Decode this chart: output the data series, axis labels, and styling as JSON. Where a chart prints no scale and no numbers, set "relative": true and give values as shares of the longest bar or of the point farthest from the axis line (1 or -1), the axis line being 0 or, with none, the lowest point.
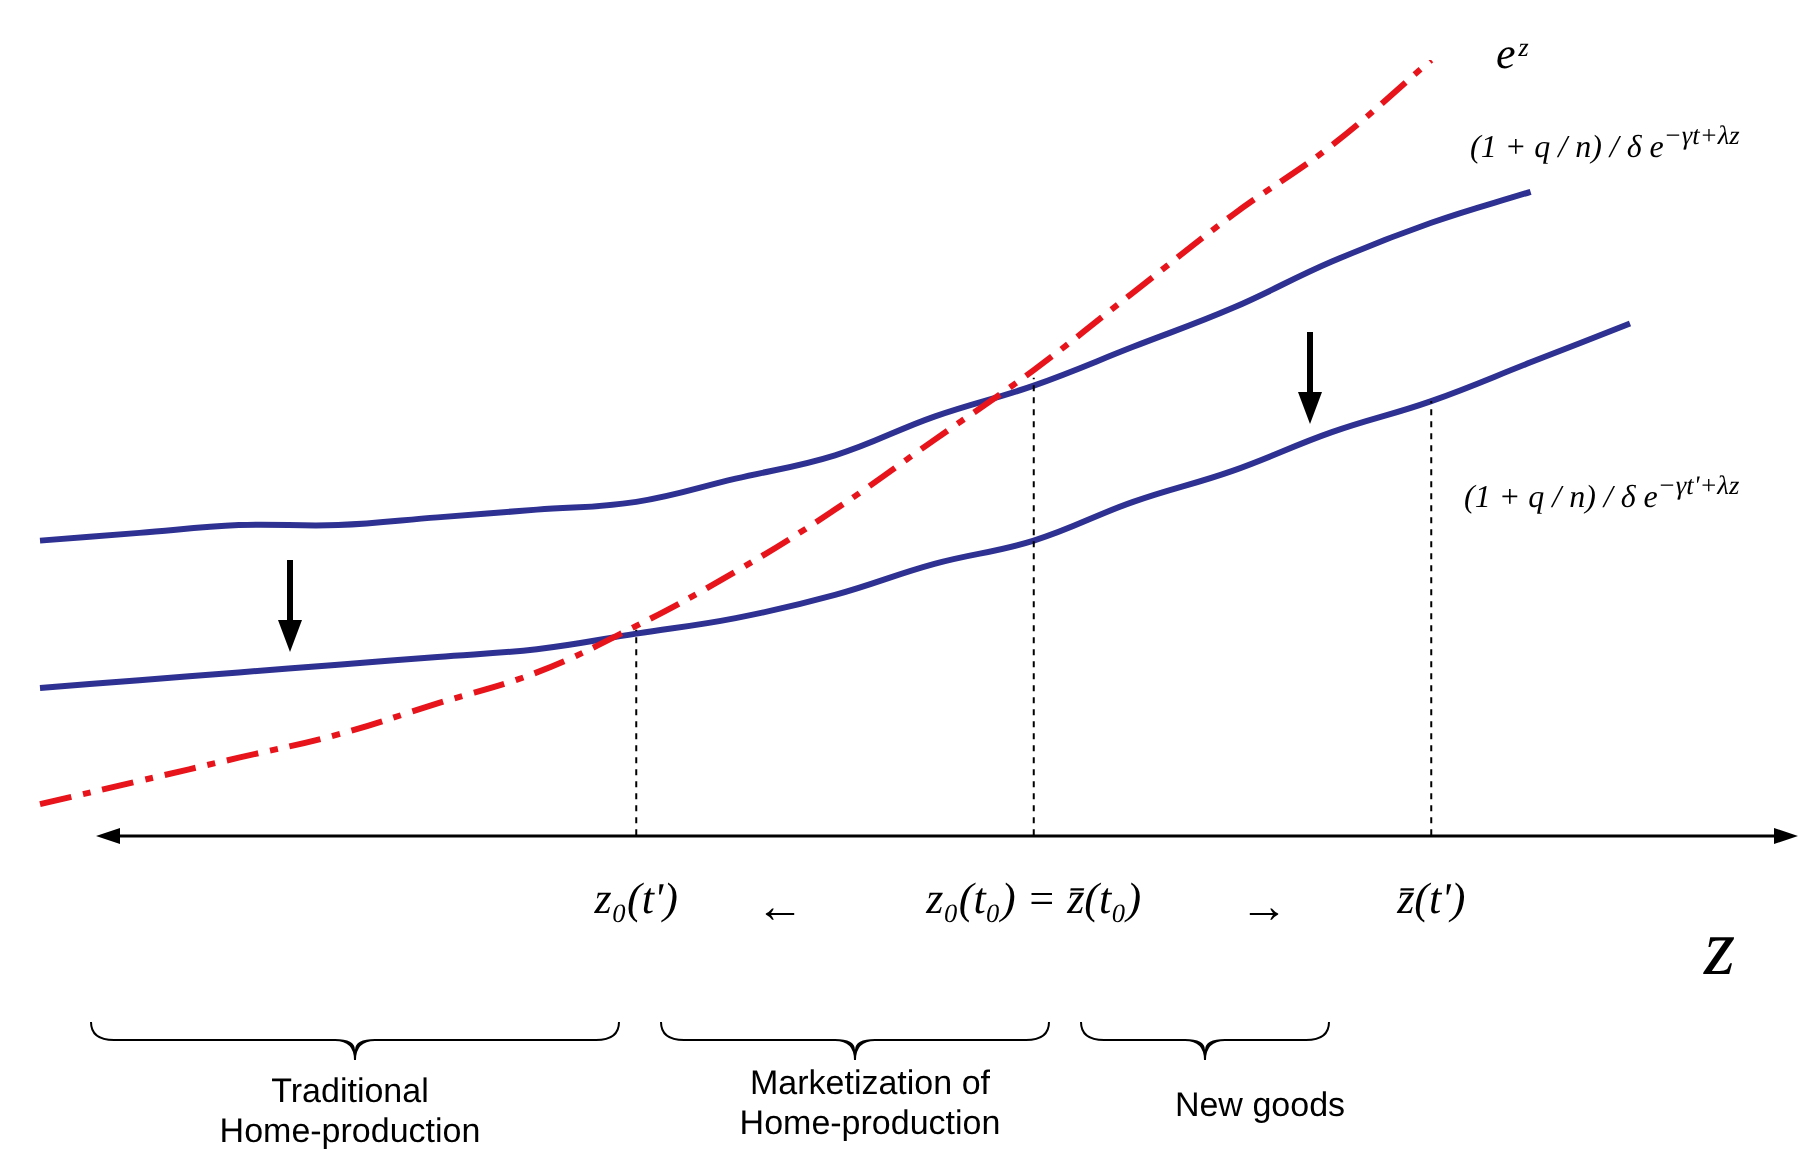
{
  "chart_data": {
    "type": "line",
    "relative": true,
    "xlabel": "z",
    "categories": [
      null,
      null,
      null,
      null,
      null,
      null,
      "z₀(t')",
      null,
      null,
      null,
      "z₀(t₀) = z̄(t₀)",
      null,
      null,
      null,
      "z̄(t')",
      null,
      null
    ],
    "series": [
      {
        "color": "#e8141c",
        "line_style": "dashed",
        "values": [
          0.04,
          0.07,
          0.1,
          0.13,
          0.17,
          0.21,
          0.27,
          0.34,
          0.42,
          0.51,
          0.6,
          0.7,
          0.8,
          0.89,
          1,
          null,
          null
        ]
      },
      {
        "color": "#2e3192",
        "line_style": "solid",
        "values": [
          0.38,
          0.39,
          0.4,
          0.4,
          0.41,
          0.42,
          0.43,
          0.46,
          0.49,
          0.54,
          0.58,
          0.63,
          0.68,
          0.74,
          0.79,
          0.83,
          null
        ]
      },
      {
        "color": "#2e3192",
        "line_style": "solid",
        "values": [
          0.19,
          0.2,
          0.21,
          0.22,
          0.23,
          0.24,
          0.26,
          0.28,
          0.31,
          0.35,
          0.38,
          0.43,
          0.47,
          0.52,
          0.56,
          0.61,
          0.66
        ]
      }
    ],
    "ref_lines": [
      {
        "axis": "x",
        "value": "z₀(t')",
        "line_style": "dashed"
      },
      {
        "axis": "x",
        "value": "z₀(t₀) = z̄(t₀)",
        "line_style": "dashed"
      },
      {
        "axis": "x",
        "value": "z̄(t')",
        "line_style": "dashed"
      }
    ],
    "annotations": [
      "eᶻ",
      "(1 + q / n) / δ e$^{−γt+λz}$",
      "(1 + q / n) / δ e$^{−γt'+λz}$",
      "←",
      "→",
      "Traditional Home-production",
      "Marketization of Home-production",
      "New goods"
    ],
    "grid": false,
    "legend": false,
    "marker": "none"
  }
}
